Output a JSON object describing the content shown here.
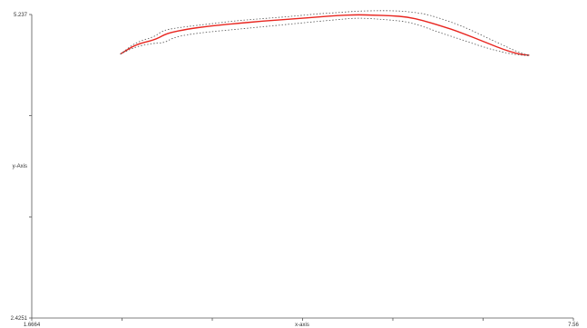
{
  "chart_data": {
    "type": "line",
    "xlabel": "x-axis",
    "ylabel": "y-Axis",
    "xlim": [
      1.6664,
      7.56
    ],
    "ylim": [
      2.4251,
      5.237
    ],
    "x_tick_labels": [
      "1.6664",
      "7.56"
    ],
    "y_tick_labels": [
      "5.237",
      "2.4251"
    ],
    "grid": false,
    "colors": {
      "mean": "#e8251f",
      "band": "#555555",
      "axis": "#555555"
    },
    "series": [
      {
        "role": "mean",
        "x": [
          2.63,
          2.8,
          3.0,
          3.11,
          3.18,
          3.35,
          3.6,
          3.9,
          4.2,
          4.5,
          4.8,
          5.0,
          5.2,
          5.4,
          5.58,
          5.75,
          5.93,
          6.1,
          6.35,
          6.6,
          6.85,
          7.0,
          7.08
        ],
        "y": [
          4.87,
          4.96,
          5.0,
          5.05,
          5.07,
          5.1,
          5.13,
          5.155,
          5.177,
          5.195,
          5.215,
          5.228,
          5.235,
          5.23,
          5.225,
          5.215,
          5.18,
          5.137,
          5.066,
          4.98,
          4.897,
          4.865,
          4.86
        ]
      },
      {
        "role": "upper-bound",
        "x": [
          2.63,
          2.8,
          3.0,
          3.08,
          3.15,
          3.35,
          3.6,
          3.9,
          4.2,
          4.5,
          4.8,
          5.0,
          5.2,
          5.4,
          5.58,
          5.75,
          5.93,
          6.1,
          6.35,
          6.6,
          6.85,
          7.0,
          7.08
        ],
        "y": [
          4.87,
          4.98,
          5.03,
          5.08,
          5.1,
          5.125,
          5.15,
          5.18,
          5.2,
          5.22,
          5.245,
          5.255,
          5.268,
          5.272,
          5.272,
          5.265,
          5.245,
          5.205,
          5.13,
          5.03,
          4.93,
          4.875,
          4.86
        ]
      },
      {
        "role": "lower-bound",
        "x": [
          2.63,
          2.8,
          3.0,
          3.11,
          3.2,
          3.35,
          3.6,
          3.9,
          4.2,
          4.5,
          4.8,
          5.0,
          5.2,
          5.4,
          5.58,
          5.75,
          5.93,
          6.1,
          6.35,
          6.6,
          6.85,
          7.0,
          7.08
        ],
        "y": [
          4.87,
          4.94,
          4.972,
          4.975,
          5.02,
          5.05,
          5.077,
          5.1,
          5.125,
          5.15,
          5.175,
          5.19,
          5.205,
          5.197,
          5.185,
          5.17,
          5.125,
          5.07,
          5.002,
          4.93,
          4.875,
          4.86,
          4.855
        ]
      }
    ]
  }
}
